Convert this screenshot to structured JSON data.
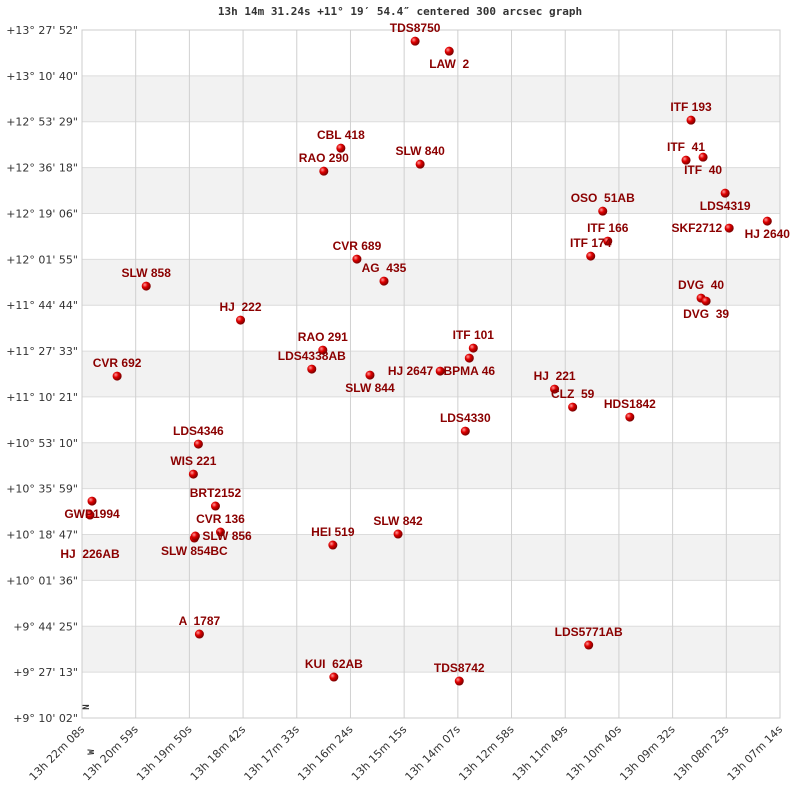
{
  "chart_data": {
    "type": "scatter",
    "title": "13h 14m 31.24s +11° 19′ 54.4″ centered 300 arcsec graph",
    "x_axis": {
      "quantity": "right ascension (deg)",
      "range": [
        200.5333,
        196.8083
      ],
      "reversed": true,
      "tick_labels": [
        "13h 22m 08s",
        "13h 20m 59s",
        "13h 19m 50s",
        "13h 18m 42s",
        "13h 17m 33s",
        "13h 16m 24s",
        "13h 15m 15s",
        "13h 14m 07s",
        "13h 12m 58s",
        "13h 11m 49s",
        "13h 10m 40s",
        "13h 09m 32s",
        "13h 08m 23s",
        "13h 07m 14s"
      ]
    },
    "y_axis": {
      "quantity": "declination (deg)",
      "range": [
        9.16722,
        13.46444
      ],
      "tick_labels": [
        "+13° 27' 52\"",
        "+13° 10' 40\"",
        "+12° 53' 29\"",
        "+12° 36' 18\"",
        "+12° 19' 06\"",
        "+12° 01' 55\"",
        "+11° 44' 44\"",
        "+11° 27' 33\"",
        "+11° 10' 21\"",
        "+10° 53' 10\"",
        "+10° 35' 59\"",
        "+10° 18' 47\"",
        "+10° 01' 36\"",
        "+9° 44' 25\"",
        "+9° 27' 13\"",
        "+9° 10' 02\""
      ]
    },
    "grid": true,
    "banded_rows": true,
    "direction_labels": {
      "north": "N",
      "west": "W"
    },
    "marker_color": "#e00000",
    "label_color": "#8b0000",
    "points": [
      {
        "name": "TDS8750",
        "ra": 198.7556,
        "dec": 13.3947
      },
      {
        "name": "LAW  2",
        "ra": 198.5735,
        "dec": 13.3322
      },
      {
        "name": "ITF 193",
        "ra": 197.2831,
        "dec": 12.9014
      },
      {
        "name": "ITF  41",
        "ra": 197.3098,
        "dec": 12.6516
      },
      {
        "name": "ITF  40",
        "ra": 197.2188,
        "dec": 12.6703
      },
      {
        "name": "CBL 418",
        "ra": 199.1518,
        "dec": 12.7265
      },
      {
        "name": "RAO 290",
        "ra": 199.2428,
        "dec": 12.5829
      },
      {
        "name": "SLW 840",
        "ra": 198.7288,
        "dec": 12.6266
      },
      {
        "name": "LDS4319",
        "ra": 197.101,
        "dec": 12.4455
      },
      {
        "name": "OSO  51AB",
        "ra": 197.7543,
        "dec": 12.3331
      },
      {
        "name": "HJ 2640",
        "ra": 196.8761,
        "dec": 12.2707
      },
      {
        "name": "SKF2712",
        "ra": 197.0796,
        "dec": 12.227
      },
      {
        "name": "ITF 166",
        "ra": 197.7275,
        "dec": 12.1458
      },
      {
        "name": "ITF 174",
        "ra": 197.8185,
        "dec": 12.0521
      },
      {
        "name": "CVR 689",
        "ra": 199.0661,
        "dec": 12.0334
      },
      {
        "name": "AG  435",
        "ra": 198.9216,
        "dec": 11.896
      },
      {
        "name": "SLW 858",
        "ra": 200.1906,
        "dec": 11.8648
      },
      {
        "name": "DVG  40",
        "ra": 197.2295,
        "dec": 11.7898
      },
      {
        "name": "DVG  39",
        "ra": 197.2027,
        "dec": 11.7711
      },
      {
        "name": "HJ  222",
        "ra": 199.6873,
        "dec": 11.6525
      },
      {
        "name": "RAO 291",
        "ra": 199.2482,
        "dec": 11.4651
      },
      {
        "name": "LDS4338AB",
        "ra": 199.3071,
        "dec": 11.3465
      },
      {
        "name": "SLW 844",
        "ra": 198.9965,
        "dec": 11.309
      },
      {
        "name": "ITF 101",
        "ra": 198.445,
        "dec": 11.4776
      },
      {
        "name": "BPMA 46",
        "ra": 198.4664,
        "dec": 11.4152
      },
      {
        "name": "HJ 2647",
        "ra": 198.6217,
        "dec": 11.334
      },
      {
        "name": "CVR 692",
        "ra": 200.3459,
        "dec": 11.3028
      },
      {
        "name": "HJ  221",
        "ra": 198.0113,
        "dec": 11.2216
      },
      {
        "name": "CLZ  59",
        "ra": 197.9149,
        "dec": 11.1092
      },
      {
        "name": "HDS1842",
        "ra": 197.6097,
        "dec": 11.0468
      },
      {
        "name": "LDS4330",
        "ra": 198.4878,
        "dec": 10.9593
      },
      {
        "name": "LDS4346",
        "ra": 199.9122,
        "dec": 10.8782
      },
      {
        "name": "WIS 221",
        "ra": 199.9389,
        "dec": 10.6908
      },
      {
        "name": "GWP1994",
        "ra": 200.4798,
        "dec": 10.5222
      },
      {
        "name": "HJ  226AB",
        "ra": 200.4905,
        "dec": 10.4348
      },
      {
        "name": "BRT2152",
        "ra": 199.8211,
        "dec": 10.491
      },
      {
        "name": "CVR 136",
        "ra": 199.7944,
        "dec": 10.3287
      },
      {
        "name": "SLW 854BC",
        "ra": 199.9336,
        "dec": 10.2912
      },
      {
        "name": "SLW 856",
        "ra": 199.9282,
        "dec": 10.3037
      },
      {
        "name": "HEI 519",
        "ra": 199.1946,
        "dec": 10.2475
      },
      {
        "name": "SLW 842",
        "ra": 198.8466,
        "dec": 10.3162
      },
      {
        "name": "A  1787",
        "ra": 199.9068,
        "dec": 9.6917
      },
      {
        "name": "KUI  62AB",
        "ra": 199.1893,
        "dec": 9.4232
      },
      {
        "name": "TDS8742",
        "ra": 198.52,
        "dec": 9.3982
      },
      {
        "name": "LDS5771AB",
        "ra": 197.8292,
        "dec": 9.623
      }
    ]
  }
}
